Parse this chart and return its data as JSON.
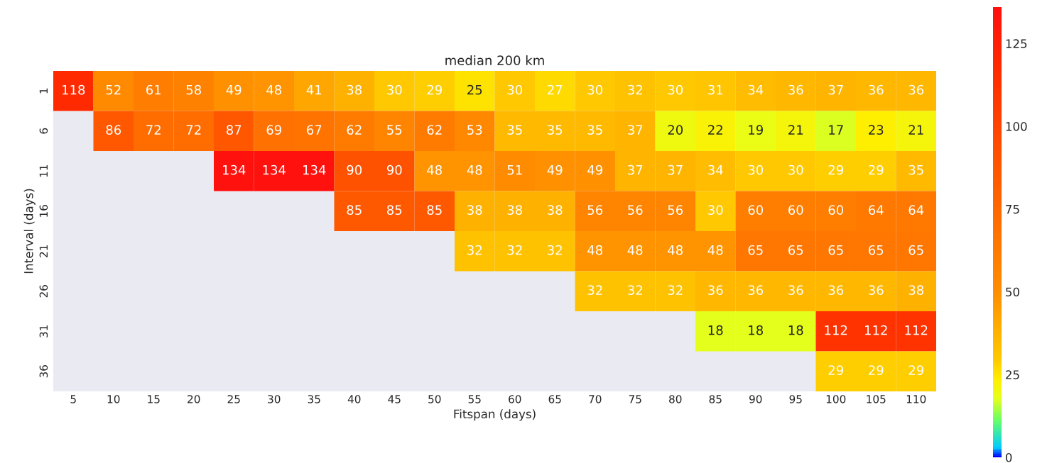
{
  "chart_data": {
    "type": "heatmap",
    "title": "median 200 km",
    "xlabel": "Fitspan (days)",
    "ylabel": "Interval (days)",
    "categories": [
      "5",
      "10",
      "15",
      "20",
      "25",
      "30",
      "35",
      "40",
      "45",
      "50",
      "55",
      "60",
      "65",
      "70",
      "75",
      "80",
      "85",
      "90",
      "95",
      "100",
      "105",
      "110"
    ],
    "y_categories": [
      "1",
      "6",
      "11",
      "16",
      "21",
      "26",
      "31",
      "36"
    ],
    "cells": [
      [
        118,
        52,
        61,
        58,
        49,
        48,
        41,
        38,
        30,
        29,
        25,
        30,
        27,
        30,
        32,
        30,
        31,
        34,
        36,
        37,
        36,
        36
      ],
      [
        null,
        86,
        72,
        72,
        87,
        69,
        67,
        62,
        55,
        62,
        53,
        35,
        35,
        35,
        37,
        20,
        22,
        19,
        21,
        17,
        23,
        21
      ],
      [
        null,
        null,
        null,
        null,
        134,
        134,
        134,
        90,
        90,
        48,
        48,
        51,
        49,
        49,
        37,
        37,
        34,
        30,
        30,
        29,
        29,
        35
      ],
      [
        null,
        null,
        null,
        null,
        null,
        null,
        null,
        85,
        85,
        85,
        38,
        38,
        38,
        56,
        56,
        56,
        30,
        60,
        60,
        60,
        64,
        64
      ],
      [
        null,
        null,
        null,
        null,
        null,
        null,
        null,
        null,
        null,
        null,
        32,
        32,
        32,
        48,
        48,
        48,
        48,
        65,
        65,
        65,
        65,
        65
      ],
      [
        null,
        null,
        null,
        null,
        null,
        null,
        null,
        null,
        null,
        null,
        null,
        null,
        null,
        32,
        32,
        32,
        36,
        36,
        36,
        36,
        36,
        38
      ],
      [
        null,
        null,
        null,
        null,
        null,
        null,
        null,
        null,
        null,
        null,
        null,
        null,
        null,
        null,
        null,
        null,
        18,
        18,
        18,
        112,
        112,
        112
      ],
      [
        null,
        null,
        null,
        null,
        null,
        null,
        null,
        null,
        null,
        null,
        null,
        null,
        null,
        null,
        null,
        null,
        null,
        null,
        null,
        29,
        29,
        29
      ]
    ],
    "clim": [
      0,
      136
    ],
    "cticks": [
      0,
      25,
      50,
      75,
      100,
      125
    ],
    "data_labels": true,
    "grid": false
  }
}
